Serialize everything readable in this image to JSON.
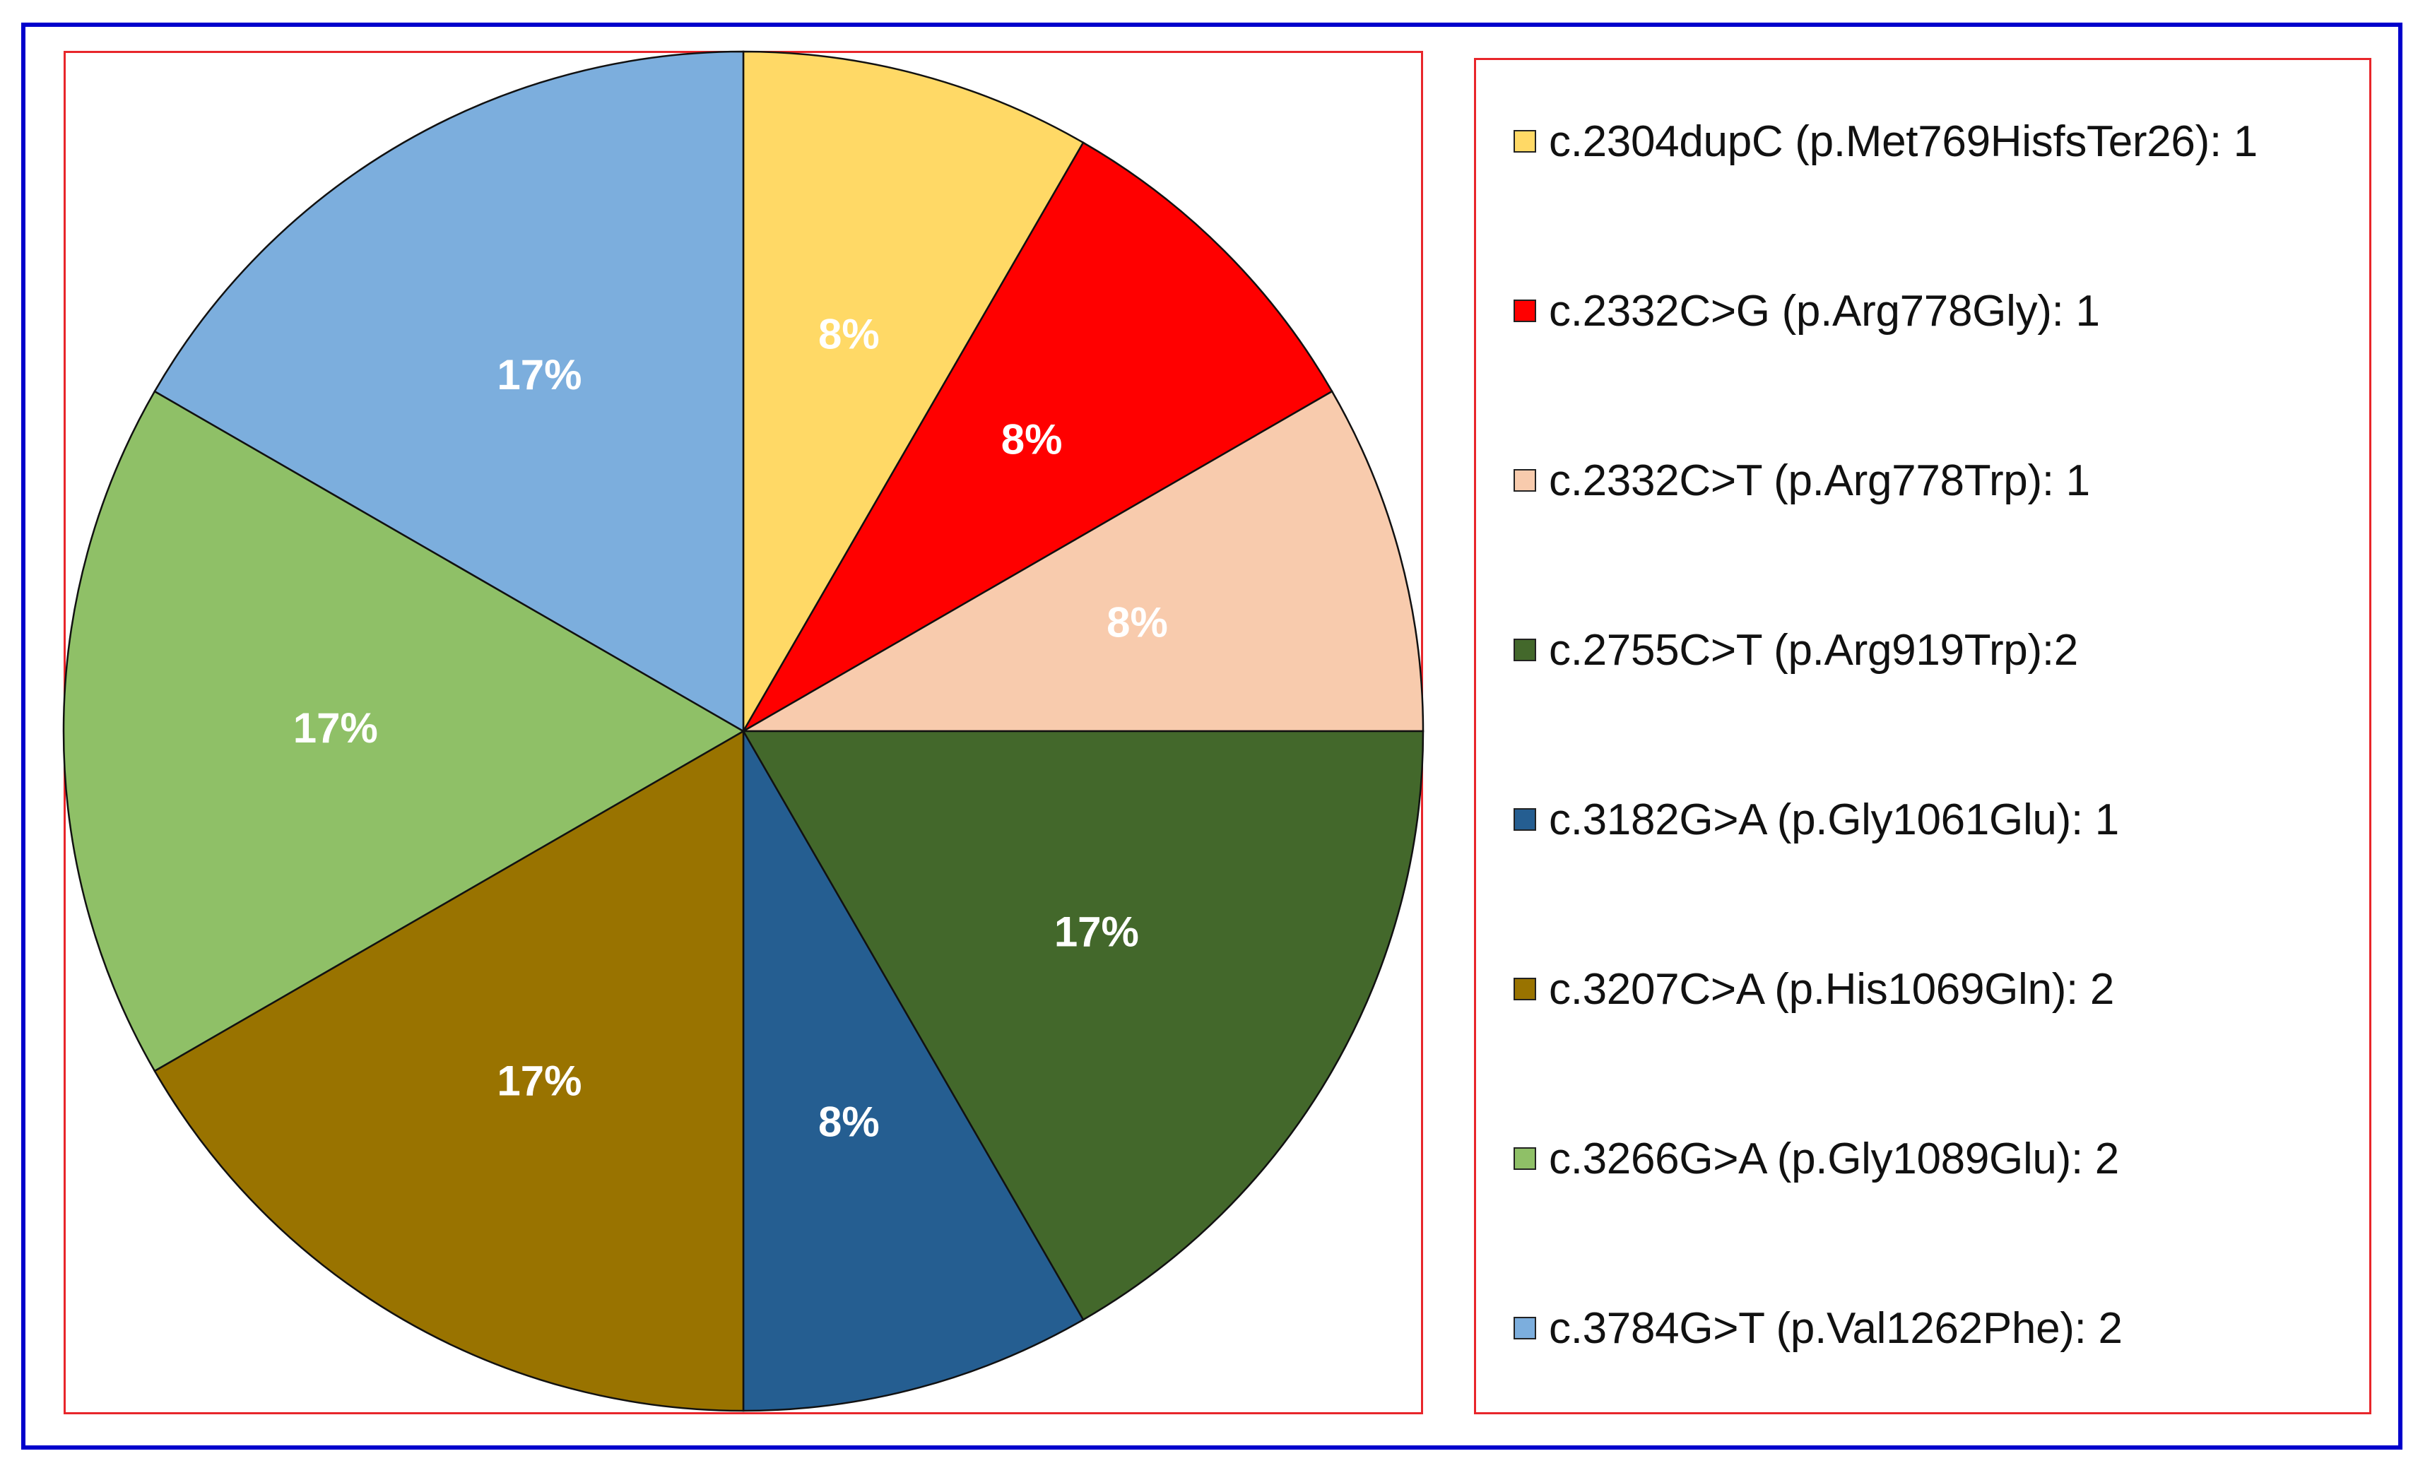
{
  "chart_data": {
    "type": "pie",
    "title": "",
    "slices": [
      {
        "name": "c.2304dupC (p.Met769HisfsTer26)",
        "value": 1,
        "percent_label": "8%",
        "color": "#FFD966",
        "legend_label": "c.2304dupC (p.Met769HisfsTer26): 1"
      },
      {
        "name": "c.2332C>G (p.Arg778Gly)",
        "value": 1,
        "percent_label": "8%",
        "color": "#FF0000",
        "legend_label": "c.2332C>G (p.Arg778Gly): 1"
      },
      {
        "name": "c.2332C>T (p.Arg778Trp)",
        "value": 1,
        "percent_label": "8%",
        "color": "#F8CBAD",
        "legend_label": "c.2332C>T (p.Arg778Trp): 1"
      },
      {
        "name": "c.2755C>T (p.Arg919Trp)",
        "value": 2,
        "percent_label": "17%",
        "color": "#43682B",
        "legend_label": "c.2755C>T (p.Arg919Trp):2"
      },
      {
        "name": "c.3182G>A (p.Gly1061Glu)",
        "value": 1,
        "percent_label": "8%",
        "color": "#255E91",
        "legend_label": "c.3182G>A (p.Gly1061Glu): 1"
      },
      {
        "name": "c.3207C>A (p.His1069Gln)",
        "value": 2,
        "percent_label": "17%",
        "color": "#997300",
        "legend_label": "c.3207C>A (p.His1069Gln): 2"
      },
      {
        "name": "c.3266G>A (p.Gly1089Glu)",
        "value": 2,
        "percent_label": "17%",
        "color": "#8FC067",
        "legend_label": "c.3266G>A (p.Gly1089Glu): 2"
      },
      {
        "name": "c.3784G>T (p.Val1262Phe)",
        "value": 2,
        "percent_label": "17%",
        "color": "#7CAEDD",
        "legend_label": "c.3784G>T (p.Val1262Phe): 2"
      }
    ],
    "start_angle": "12 o'clock",
    "direction": "clockwise",
    "legend_position": "right"
  },
  "colors": {
    "outer_border": "#0000CC",
    "inner_border": "#E8262B"
  }
}
